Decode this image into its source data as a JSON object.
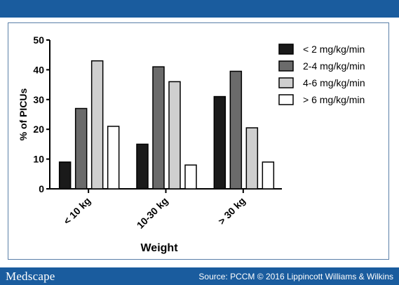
{
  "footer": {
    "brand": "Medscape",
    "source": "Source: PCCM © 2016 Lippincott Williams & Wilkins"
  },
  "chart_data": {
    "type": "bar",
    "categories": [
      "< 10 kg",
      "10-30 kg",
      "> 30 kg"
    ],
    "series": [
      {
        "name": "< 2 mg/kg/min",
        "values": [
          9,
          15,
          31
        ],
        "color": "#1a1a1a"
      },
      {
        "name": "2-4 mg/kg/min",
        "values": [
          27,
          41,
          39.5
        ],
        "color": "#6b6b6b"
      },
      {
        "name": "4-6 mg/kg/min",
        "values": [
          43,
          36,
          20.5
        ],
        "color": "#cfcfcf"
      },
      {
        "name": "> 6 mg/kg/min",
        "values": [
          21,
          8,
          9
        ],
        "color": "#ffffff"
      }
    ],
    "xlabel": "Weight",
    "ylabel": "% of PICUs",
    "ylim": [
      0,
      50
    ],
    "yticks": [
      0,
      10,
      20,
      30,
      40,
      50
    ],
    "grid": false,
    "legend_position": "top-right"
  }
}
